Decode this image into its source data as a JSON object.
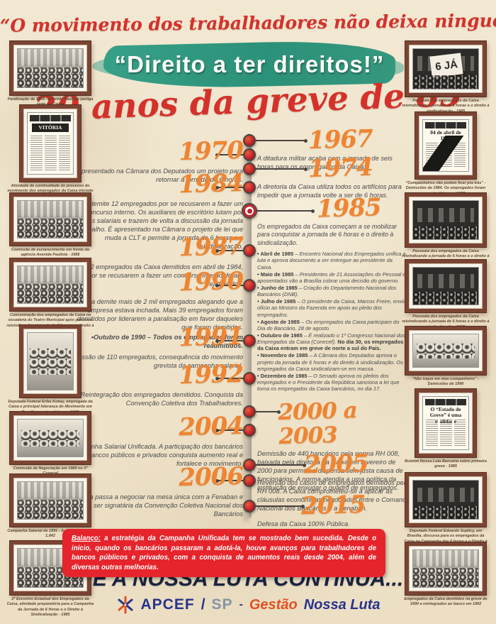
{
  "palette": {
    "red": "#d5312b",
    "teal": "#2f9b81",
    "orange": "#ef8532",
    "navy": "#1d2440",
    "box_red": "#e6242b",
    "frame_brown": "#7b4433"
  },
  "header": {
    "quote": "“O movimento dos trabalhadores não deixa ninguém pelo caminho”",
    "banner": "“Direito a ter direitos!”",
    "title": "30 anos da greve de 85"
  },
  "timeline": {
    "entries": [
      {
        "year": "1967",
        "text": "A ditadura militar acaba com a jornada de seis horas para os empregados da Caixa."
      },
      {
        "year": "1970",
        "text": "É apresentado na Câmara dos Deputados um projeto para retornar a jornada de 6 horas."
      },
      {
        "year": "1974",
        "text": "A diretoria da Caixa utiliza todos os artifícios para impedir que a jornada volte a ser de 6 horas."
      },
      {
        "year": "1984",
        "text": "Caixa demite 12 empregados por se recusarem a fazer um concurso interno. Os auxiliares de escritório lutam por melhorias salariais e trazem de volta a discussão da jornada de trabalho. É apresentado na Câmara o projeto de lei que muda a CLT e permite a jornada de 6 horas e a sindicalização."
      },
      {
        "year": "1985",
        "text": "Os empregados da Caixa começam a se mobilizar para conquistar a jornada de 6 horas e o direito à sindicalização.",
        "bullets": [
          {
            "lead": "Abril de 1985",
            "text": "– Encontro Nacional dos Empregados unifica a luta e aprova documento a ser entregue ao presidente da Caixa."
          },
          {
            "lead": "Maio de 1985",
            "text": "– Presidentes de 21 Associações do Pessoal e aposentados vão a Brasília cobrar uma decisão do governo."
          },
          {
            "lead": "Junho de 1985",
            "text": "– Criação do Departamento Nacional dos Bancários (DNB)."
          },
          {
            "lead": "Julho de 1985",
            "text": "– O presidente da Caixa, Marcos Freire, envia ofício ao Ministro da Fazenda em apoio ao pleito dos empregados."
          },
          {
            "lead": "Agosto de 1985",
            "text": "– Os empregados da Caixa participam do Dia do Bancário, 28 de agosto."
          },
          {
            "lead": "Outubro de 1985",
            "text": "– É realizado o 1º Congresso Nacional dos Empregados da Caixa (Conecef).",
            "bold_text": "No dia 30, os empregados da Caixa entram em greve de norte a sul do País."
          },
          {
            "lead": "Novembro de 1985",
            "text": "– A Câmara dos Deputados aprova o projeto da jornada de 6 horas e do direito à sindicalização. Os empregados da Caixa sindicalizam-se em massa."
          },
          {
            "lead": "Dezembro de 1985",
            "text": "– O Senado aprova os pleitos dos empregados e o Presidente da República sanciona a lei que torna os empregados da Caixa bancários, no dia 17."
          }
        ]
      },
      {
        "year": "1987",
        "text": "Os 12 empregados da Caixa demitidos em abril de 1984, por se recusarem a fazer um concurso interno, foram readmitidos."
      },
      {
        "year": "1990",
        "text": "Caixa demite mais de 2 mil empregados alegando que a empresa estava inchada. Mais 39 empregados foram demitidos por liderarem a paralisação em favor daqueles que foram demitidos.",
        "note": "•Outubro de 1990 – Todos os empregados foram readmitidos."
      },
      {
        "year": "1991",
        "text": "Demissão de 110 empregados, consequência do movimento grevista da campanha salarial."
      },
      {
        "year": "1992",
        "text": "Reintegração dos empregados demitidos. Conquista da Convenção Coletiva dos Trabalhadores."
      },
      {
        "year": "2000 a 2003",
        "text": "Demissão de 440 bancários pela norma RH 008, baixada pela diretoria da Caixa em fevereiro de 2000 para permitir a dispensa sem justa causa de funcionários. A norma atendia a uma política da instituição de enxugar o quadro de empregados."
      },
      {
        "year": "2004",
        "text": "Campanha Salarial Unificada. A participação dos bancários de bancos públicos e privados conquista aumento real e fortalece o movimento."
      },
      {
        "year": "2005",
        "text": "Reversão dos casos de empregados demitidos pela RH 008. A Caixa comprometeu-se a aplicar as cláusulas econômicas negociadas entre o Comando Nacional dos Bancários e a Fenaban."
      },
      {
        "year": "2006",
        "text": "A Caixa passa a negociar na mesa única com a Fenaban e a ser signatária da Convenção Coletiva Nacional dos Bancários"
      },
      {
        "year": "2015",
        "text": "Defesa da Caixa 100% Pública."
      }
    ]
  },
  "photos": {
    "left": [
      {
        "caption": "Paralisação de 1985 - Avenida Paulista (antiga sede da Caixa)"
      },
      {
        "caption": "Atividade de continuidade do processo do movimento dos empregados da Caixa iniciado em 1985",
        "headline": "VITÓRIA"
      },
      {
        "caption": "Comissão de esclarecimento em frente da agência Avenida Paulista - 1985"
      },
      {
        "caption": "Concentração dos empregados da Caixa na escadaria do Teatro Municipal após passeata reivindicando a jornada de 6 horas e o direito à sindicalização - 1985"
      },
      {
        "caption": "Deputada Federal Erika Kokay, empregada da Caixa e principal liderança do Movimento em Brasília, e outras líderes - 1985"
      },
      {
        "caption": "Comissão de Negociação em 1989 no 3º Conecef"
      },
      {
        "caption": "Campanha Salarial de 1991 - Avenida Paulista, 1.842"
      },
      {
        "caption": "2º Encontro Estadual dos Empregados da Caixa, atividade preparatória para a Campanha da Jornada de 6 Horas e o Direito à Sindicalização - 1985"
      }
    ],
    "right": [
      {
        "caption": "Passeata dos empregados da Caixa reivindicando a jornada de 6 horas e o direito à sindicalização - 1985",
        "overlay": "6 JÁ"
      },
      {
        "caption": "“Companheiros não podem ficar pra trás” - Demissões de 1984. Os empregados foram readmitidos em 1987",
        "headline": "04 de abril de 1984"
      },
      {
        "caption": "Passeata dos empregados da Caixa reivindicando a jornada de 6 horas e o direito à sindicalização - 1985"
      },
      {
        "caption": "Passeata dos empregados da Caixa reivindicando a jornada de 6 horas e o direito à sindicalização - 1985"
      },
      {
        "caption": "“Não toque em meu companheiro” - Demissões de 1990"
      },
      {
        "caption": "Boletim Nossa Luta Bancária sobre primeira greve - 1985",
        "headline": "O “Estado de Greve” é uma realidade"
      },
      {
        "caption": "Deputado Federal Eduardo Suplicy, em Brasília, discursa para os empregados da Caixa na Campanha das 6 horas e o Direito à Sindicalização - 1985"
      },
      {
        "caption": "Empregados da Caixa demitidos na greve de 1990 e reintegrados ao banco em 1992"
      }
    ]
  },
  "balanco": {
    "lead": "Balanço:",
    "text": " a estratégia da Campanha Unificada tem se mostrado bem sucedida. Desde o início, quando os bancários passaram a adotá-la, houve avanços para trabalhadores de bancos públicos e privados, com a conquista de aumentos reais desde 2004, além de diversas outras melhorias."
  },
  "footer": {
    "slogan": "E A NOSSA LUTA CONTINUA...",
    "org": "APCEF",
    "org_slash": "/",
    "org_suffix": "SP",
    "separator": "-",
    "management_1": "Gestão",
    "management_2": "Nossa Luta"
  }
}
